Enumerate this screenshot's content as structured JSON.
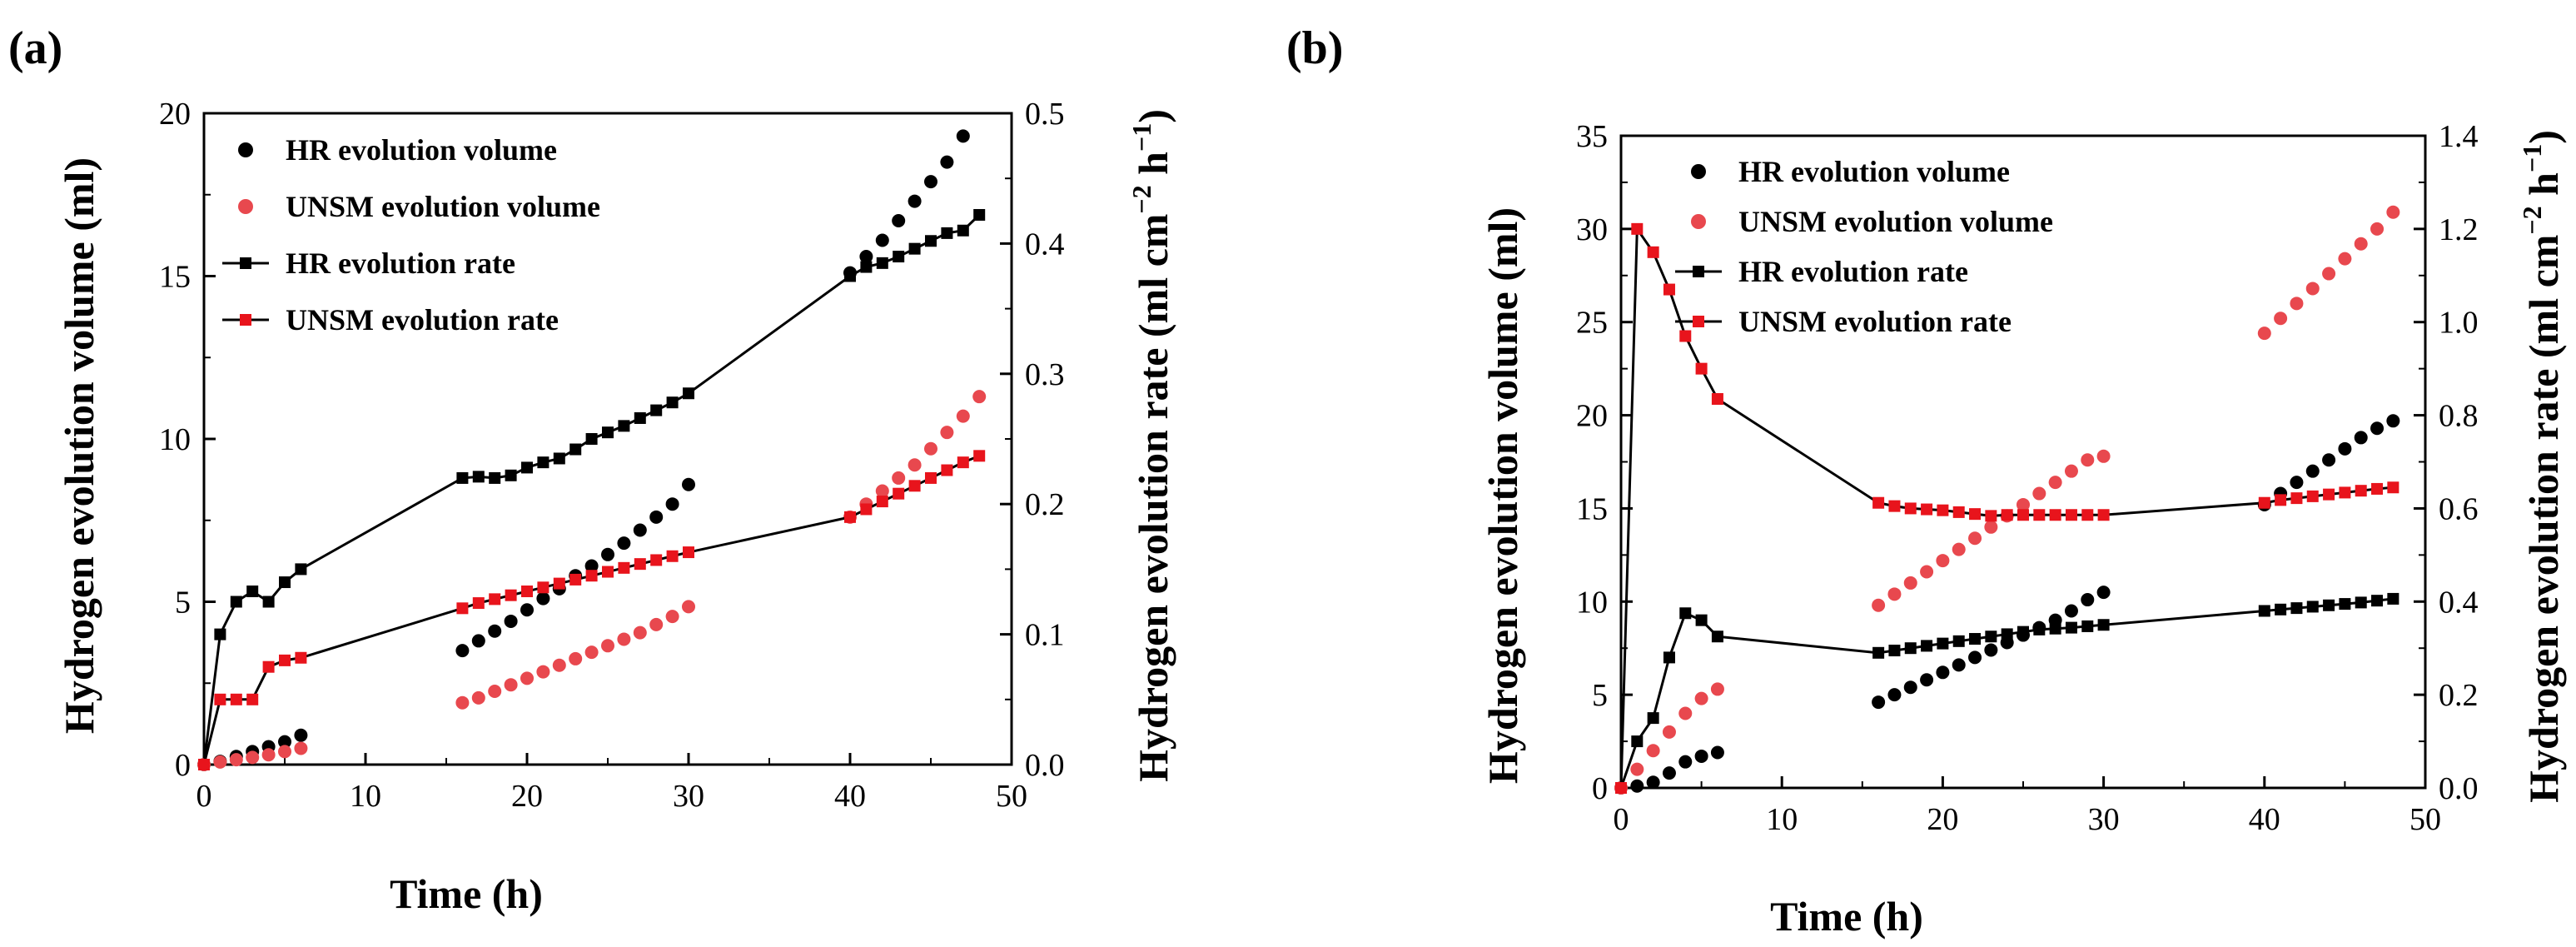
{
  "colors": {
    "hr": "#000000",
    "unsm": "#e8484e",
    "unsm_line_marker": "#e8141c"
  },
  "chart_data": [
    {
      "panel": "(a)",
      "type": "scatter",
      "xlabel": "Time (h)",
      "ylabel_left": "Hydrogen evolution volume (ml)",
      "ylabel_right_main": "Hydrogen evolution rate (ml cm",
      "ylabel_right_sup1": "−2",
      "ylabel_right_mid": " h",
      "ylabel_right_sup2": "−1",
      "ylabel_right_end": ")",
      "xlim": [
        0,
        50
      ],
      "xticks": [
        0,
        10,
        20,
        30,
        40,
        50
      ],
      "ylim_left": [
        0,
        20
      ],
      "yticks_left": [
        0,
        5,
        10,
        15,
        20
      ],
      "ylim_right": [
        0,
        0.5
      ],
      "yticks_right": [
        0.0,
        0.1,
        0.2,
        0.3,
        0.4,
        0.5
      ],
      "legend": [
        "HR evolution volume",
        "UNSM evolution volume",
        "HR evolution rate",
        "UNSM evolution rate"
      ],
      "series": [
        {
          "name": "HR evolution volume",
          "axis": "left",
          "kind": "dots",
          "color": "#000000",
          "x": [
            0,
            1,
            2,
            3,
            4,
            5,
            6,
            16,
            17,
            18,
            19,
            20,
            21,
            22,
            23,
            24,
            25,
            26,
            27,
            28,
            29,
            30,
            40,
            41,
            42,
            43,
            44,
            45,
            46,
            47
          ],
          "y": [
            0,
            0.1,
            0.25,
            0.4,
            0.55,
            0.7,
            0.9,
            3.5,
            3.8,
            4.1,
            4.4,
            4.75,
            5.1,
            5.4,
            5.8,
            6.1,
            6.45,
            6.8,
            7.2,
            7.6,
            8.0,
            8.6,
            15.1,
            15.6,
            16.1,
            16.7,
            17.3,
            17.9,
            18.5,
            19.3
          ]
        },
        {
          "name": "UNSM evolution volume",
          "axis": "left",
          "kind": "dots",
          "color": "#e8484e",
          "x": [
            0,
            1,
            2,
            3,
            4,
            5,
            6,
            16,
            17,
            18,
            19,
            20,
            21,
            22,
            23,
            24,
            25,
            26,
            27,
            28,
            29,
            30,
            40,
            41,
            42,
            43,
            44,
            45,
            46,
            47,
            48
          ],
          "y": [
            0,
            0.08,
            0.15,
            0.22,
            0.3,
            0.4,
            0.5,
            1.9,
            2.05,
            2.25,
            2.45,
            2.65,
            2.85,
            3.05,
            3.25,
            3.45,
            3.65,
            3.85,
            4.05,
            4.3,
            4.55,
            4.85,
            7.6,
            8.0,
            8.4,
            8.8,
            9.2,
            9.7,
            10.2,
            10.7,
            11.3
          ]
        },
        {
          "name": "HR evolution rate",
          "axis": "right",
          "kind": "line",
          "color": "#000000",
          "x": [
            0,
            1,
            2,
            3,
            4,
            5,
            6,
            16,
            17,
            18,
            19,
            20,
            21,
            22,
            23,
            24,
            25,
            26,
            27,
            28,
            29,
            30,
            40,
            41,
            42,
            43,
            44,
            45,
            46,
            47,
            48
          ],
          "y": [
            0,
            0.1,
            0.125,
            0.133,
            0.125,
            0.14,
            0.15,
            0.22,
            0.221,
            0.22,
            0.222,
            0.228,
            0.232,
            0.235,
            0.242,
            0.25,
            0.255,
            0.26,
            0.266,
            0.272,
            0.278,
            0.285,
            0.375,
            0.382,
            0.385,
            0.39,
            0.396,
            0.402,
            0.408,
            0.41,
            0.422
          ]
        },
        {
          "name": "UNSM evolution rate",
          "axis": "right",
          "kind": "line",
          "color": "#e8141c",
          "x": [
            0,
            1,
            2,
            3,
            4,
            5,
            6,
            16,
            17,
            18,
            19,
            20,
            21,
            22,
            23,
            24,
            25,
            26,
            27,
            28,
            29,
            30,
            40,
            41,
            42,
            43,
            44,
            45,
            46,
            47,
            48
          ],
          "y": [
            0,
            0.05,
            0.05,
            0.05,
            0.075,
            0.08,
            0.082,
            0.12,
            0.124,
            0.127,
            0.13,
            0.133,
            0.136,
            0.139,
            0.142,
            0.145,
            0.148,
            0.151,
            0.154,
            0.157,
            0.16,
            0.163,
            0.19,
            0.196,
            0.202,
            0.208,
            0.214,
            0.22,
            0.226,
            0.232,
            0.237
          ]
        }
      ]
    },
    {
      "panel": "(b)",
      "type": "scatter",
      "xlabel": "Time (h)",
      "ylabel_left": "Hydrogen evolution volume (ml)",
      "ylabel_right_main": "Hydrogen evolution rate (ml cm",
      "ylabel_right_sup1": "−2",
      "ylabel_right_mid": " h",
      "ylabel_right_sup2": "−1",
      "ylabel_right_end": ")",
      "xlim": [
        0,
        50
      ],
      "xticks": [
        0,
        10,
        20,
        30,
        40,
        50
      ],
      "ylim_left": [
        0,
        35
      ],
      "yticks_left": [
        0,
        5,
        10,
        15,
        20,
        25,
        30,
        35
      ],
      "ylim_right": [
        0,
        1.4
      ],
      "yticks_right": [
        0.0,
        0.2,
        0.4,
        0.6,
        0.8,
        1.0,
        1.2,
        1.4
      ],
      "legend": [
        "HR evolution volume",
        "UNSM evolution volume",
        "HR evolution rate",
        "UNSM evolution rate"
      ],
      "series": [
        {
          "name": "HR evolution volume",
          "axis": "left",
          "kind": "dots",
          "color": "#000000",
          "x": [
            0,
            1,
            2,
            3,
            4,
            5,
            6,
            16,
            17,
            18,
            19,
            20,
            21,
            22,
            23,
            24,
            25,
            26,
            27,
            28,
            29,
            30,
            40,
            41,
            42,
            43,
            44,
            45,
            46,
            47,
            48
          ],
          "y": [
            0,
            0.1,
            0.3,
            0.8,
            1.4,
            1.7,
            1.9,
            4.6,
            5.0,
            5.4,
            5.8,
            6.2,
            6.6,
            7.0,
            7.4,
            7.8,
            8.2,
            8.6,
            9.0,
            9.5,
            10.1,
            10.5,
            15.2,
            15.8,
            16.4,
            17.0,
            17.6,
            18.2,
            18.8,
            19.3,
            19.7
          ]
        },
        {
          "name": "UNSM evolution volume",
          "axis": "left",
          "kind": "dots",
          "color": "#e8484e",
          "x": [
            0,
            1,
            2,
            3,
            4,
            5,
            6,
            16,
            17,
            18,
            19,
            20,
            21,
            22,
            23,
            24,
            25,
            26,
            27,
            28,
            29,
            30,
            40,
            41,
            42,
            43,
            44,
            45,
            46,
            47,
            48
          ],
          "y": [
            0,
            1.0,
            2.0,
            3.0,
            4.0,
            4.8,
            5.3,
            9.8,
            10.4,
            11.0,
            11.6,
            12.2,
            12.8,
            13.4,
            14.0,
            14.6,
            15.2,
            15.8,
            16.4,
            17.0,
            17.6,
            17.8,
            24.4,
            25.2,
            26.0,
            26.8,
            27.6,
            28.4,
            29.2,
            30.0,
            30.9
          ]
        },
        {
          "name": "HR evolution rate",
          "axis": "right",
          "kind": "line",
          "color": "#000000",
          "x": [
            0,
            1,
            2,
            3,
            4,
            5,
            6,
            16,
            17,
            18,
            19,
            20,
            21,
            22,
            23,
            24,
            25,
            26,
            27,
            28,
            29,
            30,
            40,
            41,
            42,
            43,
            44,
            45,
            46,
            47,
            48
          ],
          "y": [
            0,
            0.1,
            0.15,
            0.28,
            0.375,
            0.36,
            0.325,
            0.29,
            0.295,
            0.3,
            0.305,
            0.31,
            0.315,
            0.32,
            0.325,
            0.33,
            0.335,
            0.34,
            0.342,
            0.344,
            0.347,
            0.35,
            0.38,
            0.383,
            0.386,
            0.389,
            0.392,
            0.395,
            0.398,
            0.402,
            0.406
          ]
        },
        {
          "name": "UNSM evolution rate",
          "axis": "right",
          "kind": "line",
          "color": "#e8141c",
          "x": [
            0,
            1,
            2,
            3,
            4,
            5,
            6,
            16,
            17,
            18,
            19,
            20,
            21,
            22,
            23,
            24,
            25,
            26,
            27,
            28,
            29,
            30,
            40,
            41,
            42,
            43,
            44,
            45,
            46,
            47,
            48
          ],
          "y": [
            0,
            1.2,
            1.15,
            1.07,
            0.97,
            0.9,
            0.835,
            0.612,
            0.605,
            0.6,
            0.598,
            0.596,
            0.592,
            0.588,
            0.584,
            0.586,
            0.586,
            0.586,
            0.586,
            0.586,
            0.586,
            0.586,
            0.612,
            0.618,
            0.622,
            0.626,
            0.63,
            0.634,
            0.638,
            0.642,
            0.645
          ]
        }
      ]
    }
  ]
}
